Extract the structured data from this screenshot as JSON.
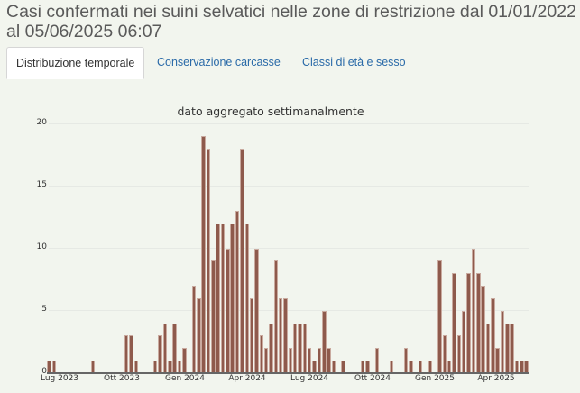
{
  "page": {
    "title": "Casi confermati nei suini selvatici nelle zone di restrizione dal 01/01/2022 al 05/06/2025 06:07"
  },
  "tabs": [
    {
      "label": "Distribuzione temporale",
      "active": true
    },
    {
      "label": "Conservazione carcasse",
      "active": false
    },
    {
      "label": "Classi di età e sesso",
      "active": false
    }
  ],
  "colors": {
    "bar_fill": "#8e5a4c",
    "bar_edge": "#c9aa9f",
    "background": "#f2f5ee",
    "tab_link": "#2a6aa8"
  },
  "chart_data": {
    "type": "bar",
    "title": "dato aggregato settimanalmente",
    "xlabel": "",
    "ylabel": "",
    "ylim": [
      0,
      20
    ],
    "yticks": [
      "0",
      "5",
      "10",
      "15",
      "20"
    ],
    "xticks": [
      "Lug 2023",
      "Ott 2023",
      "Gen 2024",
      "Apr 2024",
      "Lug 2024",
      "Ott 2024",
      "Gen 2025",
      "Apr 2025"
    ],
    "grid": true,
    "legend": null,
    "x_start": "Lug 2023",
    "x_unit": "week",
    "values": [
      1,
      1,
      0,
      0,
      0,
      0,
      0,
      0,
      0,
      1,
      0,
      0,
      0,
      0,
      0,
      0,
      3,
      3,
      1,
      0,
      0,
      0,
      1,
      3,
      4,
      1,
      4,
      1,
      2,
      0,
      7,
      6,
      19,
      18,
      9,
      12,
      12,
      10,
      12,
      13,
      18,
      12,
      6,
      10,
      3,
      2,
      4,
      9,
      6,
      6,
      2,
      4,
      4,
      4,
      2,
      1,
      2,
      5,
      2,
      1,
      0,
      1,
      0,
      0,
      0,
      1,
      1,
      0,
      2,
      0,
      0,
      1,
      0,
      0,
      2,
      1,
      0,
      1,
      0,
      1,
      0,
      9,
      3,
      1,
      8,
      3,
      5,
      8,
      10,
      8,
      7,
      4,
      6,
      2,
      5,
      4,
      4,
      1,
      1,
      1
    ]
  }
}
